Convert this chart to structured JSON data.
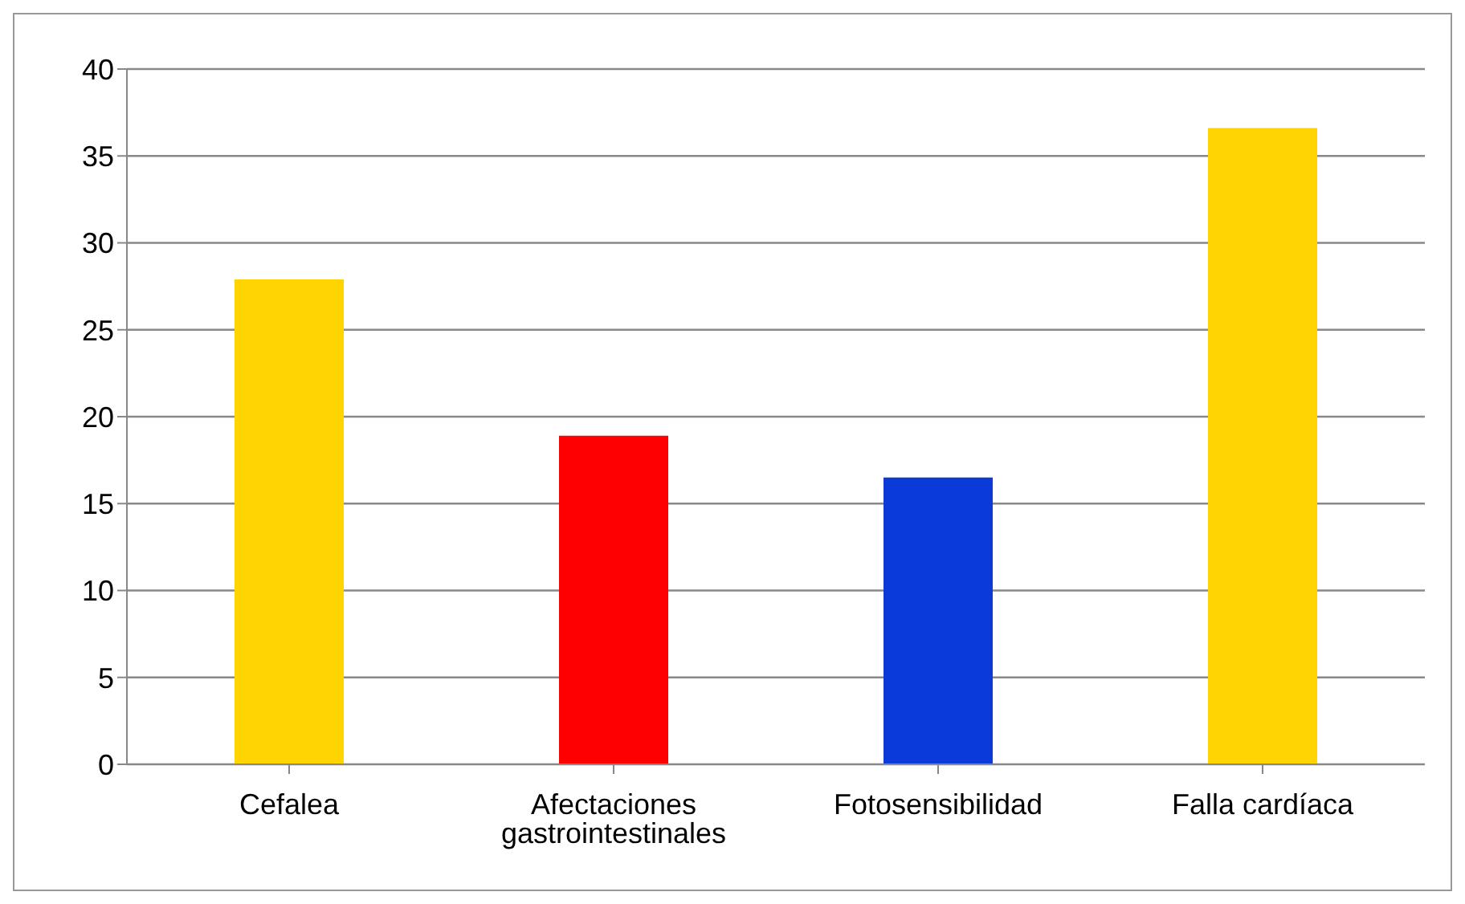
{
  "chart_data": {
    "type": "bar",
    "categories": [
      "Cefalea",
      "Afectaciones gastrointestinales",
      "Fotosensibilidad",
      "Falla cardíaca"
    ],
    "values": [
      27.9,
      18.9,
      16.5,
      36.6
    ],
    "colors": [
      "#ffd400",
      "#ff0000",
      "#0a3ad8",
      "#ffd400"
    ],
    "ylim": [
      0,
      40
    ],
    "yticks": [
      0,
      5,
      10,
      15,
      20,
      25,
      30,
      35,
      40
    ],
    "grid": "y"
  }
}
